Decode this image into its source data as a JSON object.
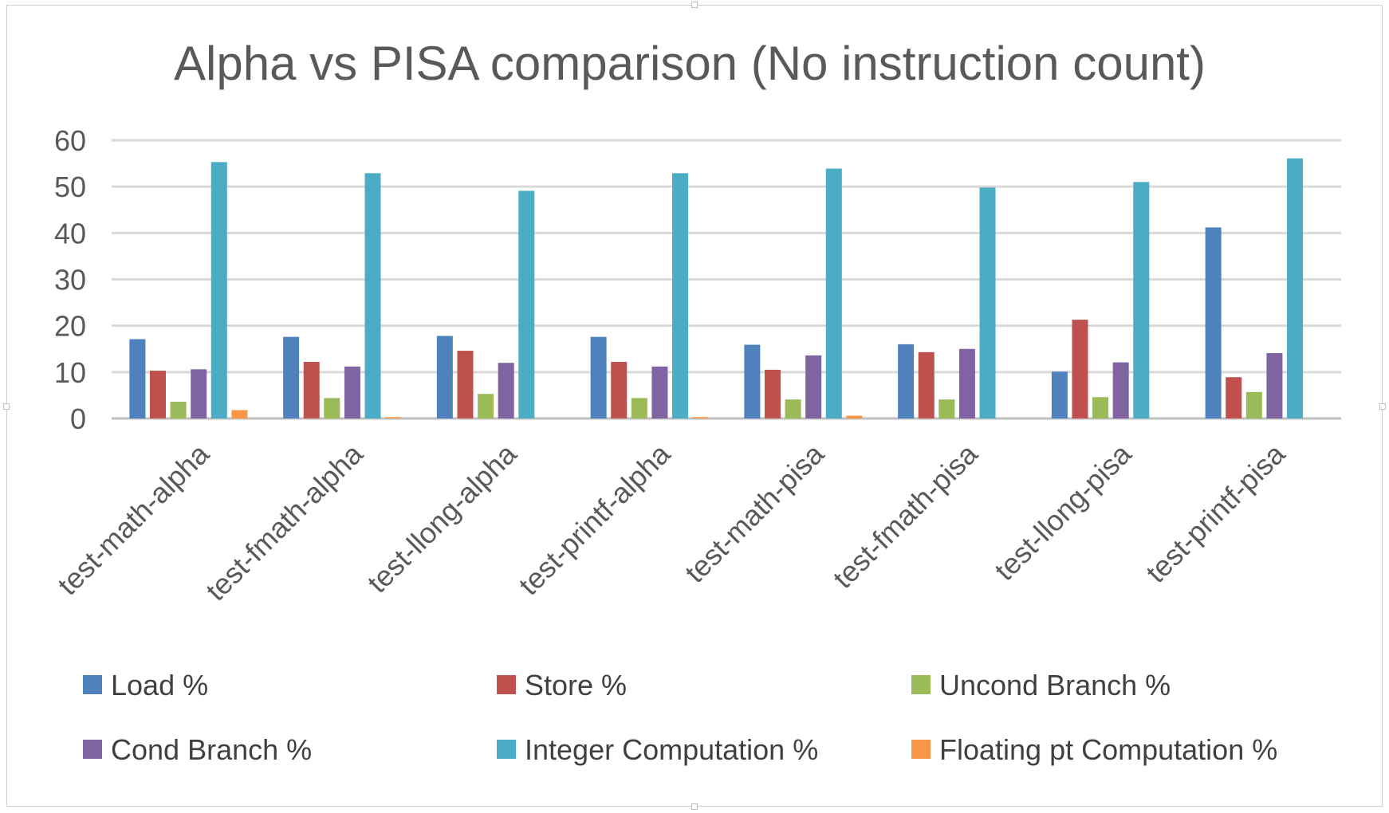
{
  "chart_data": {
    "type": "bar",
    "title": "Alpha vs PISA comparison (No instruction count)",
    "categories": [
      "test-math-alpha",
      "test-fmath-alpha",
      "test-llong-alpha",
      "test-printf-alpha",
      "test-math-pisa",
      "test-fmath-pisa",
      "test-llong-pisa",
      "test-printf-pisa"
    ],
    "ylim": [
      0,
      60
    ],
    "yticks": [
      0,
      10,
      20,
      30,
      40,
      50,
      60
    ],
    "grid": true,
    "legend_position": "bottom",
    "series": [
      {
        "name": "Load %",
        "color": "#4F81BD",
        "values": [
          17.1,
          17.6,
          17.8,
          17.6,
          15.9,
          16.0,
          10.1,
          41.2
        ]
      },
      {
        "name": "Store %",
        "color": "#C0504D",
        "values": [
          10.3,
          12.2,
          14.6,
          12.2,
          10.5,
          14.3,
          21.3,
          8.9
        ]
      },
      {
        "name": "Uncond Branch %",
        "color": "#9BBB59",
        "values": [
          3.6,
          4.4,
          5.3,
          4.4,
          4.1,
          4.1,
          4.6,
          5.7
        ]
      },
      {
        "name": "Cond Branch %",
        "color": "#8064A2",
        "values": [
          10.6,
          11.2,
          12.0,
          11.2,
          13.6,
          15.0,
          12.1,
          14.1
        ]
      },
      {
        "name": "Integer Computation %",
        "color": "#4BACC6",
        "values": [
          55.3,
          52.9,
          49.1,
          52.9,
          53.9,
          49.8,
          51.0,
          56.1
        ]
      },
      {
        "name": "Floating pt Computation %",
        "color": "#F79646",
        "values": [
          1.8,
          0.3,
          0.0,
          0.3,
          0.6,
          0.0,
          0.0,
          0.0
        ]
      }
    ]
  }
}
